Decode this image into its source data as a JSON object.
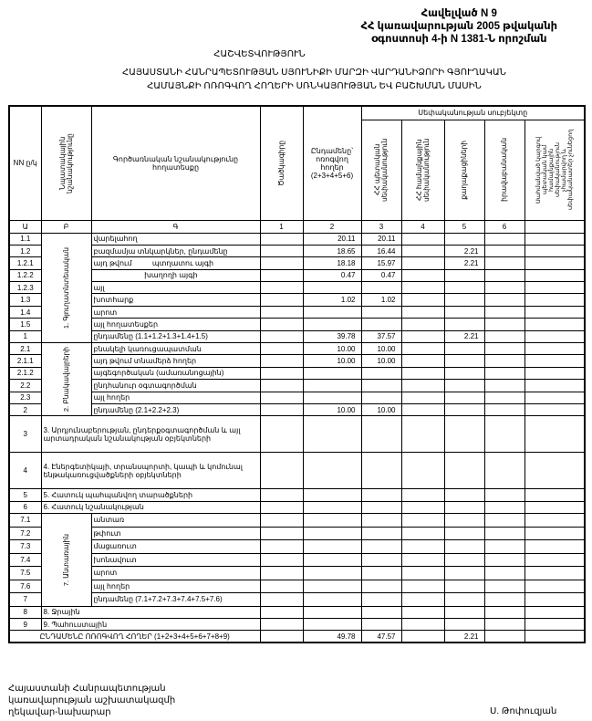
{
  "header": {
    "appendix": "Հավելված N 9",
    "line2": "ՀՀ կառավարության 2005 թվականի",
    "line3": "օգոստոսի 4-ի N 1381-Ն որոշման",
    "report": "ՀԱՇՎԵՏՎՈՒԹՅՈՒՆ",
    "title1": "ՀԱՅԱՍՏԱՆԻ ՀԱՆՐԱՊԵՏՈՒԹՅԱՆ ՍՅՈՒՆԻՔԻ ՄԱՐԶԻ ՎԱՐԴԱՆԻՁՈՐԻ ԳՅՈՒՂԱԿԱՆ",
    "title2": "ՀԱՄԱՅՆՔԻ ՈՌՈԳՎՈՂ ՀՈՂԵՐԻ ՍՌՆԿԱՅՈՒԹՅԱՆ ԵՎ ԲԱՇԽՄԱՆ ՄԱՍԻՆ"
  },
  "columns": {
    "nn": "NN ը/կ",
    "purpose": "Նպատակային նշանակությունը",
    "function": "Գործառնական նշանակությունը հողատեսքը",
    "code": "Ծածկագիրը",
    "total": "Ընդամենը՝ ոռոգվող հողեր (2+3+4+5+6)",
    "ownership": "Սեփականության սուբյեկտը",
    "state": "ՀՀ պետական սեփականություն",
    "community": "ՀՀ համայնքային սեփականություն",
    "citizens": "քաղաքացիների",
    "legal": "իրավաբանական",
    "other": "Սահմանված կարգով պետական կամ համայնքային սեփականություն չհամարվող և սեփականատեր չունեցող",
    "letters": [
      "Ա",
      "Բ",
      "Գ",
      "1",
      "2",
      "3",
      "4",
      "5",
      "6"
    ]
  },
  "groups": {
    "g1": "1. Գյուղատնտեսական",
    "g2": "2. Բնակավայրերի",
    "g7": "7. Անտառային"
  },
  "rows": [
    {
      "nn": "1.1",
      "label": "վարելահող",
      "group": "g1",
      "v": [
        "20.11",
        "20.11",
        "",
        "",
        "",
        ""
      ]
    },
    {
      "nn": "1.2",
      "label": "բազմամյա տնկարկներ, ընդամենը",
      "v": [
        "18.65",
        "16.44",
        "",
        "2.21",
        "",
        ""
      ]
    },
    {
      "nn": "1.2.1",
      "label": "այդ թվում          պտղատու այգի",
      "v": [
        "18.18",
        "15.97",
        "",
        "2.21",
        "",
        ""
      ]
    },
    {
      "nn": "1.2.2",
      "label": "                         խաղողի այգի",
      "v": [
        "0.47",
        "0.47",
        "",
        "",
        "",
        ""
      ]
    },
    {
      "nn": "1.2.3",
      "label": "այլ",
      "v": [
        "",
        "",
        "",
        "",
        "",
        ""
      ]
    },
    {
      "nn": "1.3",
      "label": "խոտհարք",
      "v": [
        "1.02",
        "1.02",
        "",
        "",
        "",
        ""
      ]
    },
    {
      "nn": "1.4",
      "label": "արոտ",
      "v": [
        "",
        "",
        "",
        "",
        "",
        ""
      ]
    },
    {
      "nn": "1.5",
      "label": "այլ հողատեսքեր",
      "v": [
        "",
        "",
        "",
        "",
        "",
        ""
      ]
    },
    {
      "nn": "1",
      "label": "ընդամենը (1.1+1.2+1.3+1.4+1.5)",
      "v": [
        "39.78",
        "37.57",
        "",
        "2.21",
        "",
        ""
      ]
    },
    {
      "nn": "2.1",
      "label": "բնակելի կառուցապատման",
      "group": "g2",
      "v": [
        "10.00",
        "10.00",
        "",
        "",
        "",
        ""
      ]
    },
    {
      "nn": "2.1.1",
      "label": "այդ թվում տնամերձ հողեր",
      "v": [
        "10.00",
        "10.00",
        "",
        "",
        "",
        ""
      ]
    },
    {
      "nn": "2.1.2",
      "label": "այգեգործական (ամառանոցային)",
      "v": [
        "",
        "",
        "",
        "",
        "",
        ""
      ]
    },
    {
      "nn": "2.2",
      "label": "ընդհանուր օգտագործման",
      "v": [
        "",
        "",
        "",
        "",
        "",
        ""
      ]
    },
    {
      "nn": "2.3",
      "label": "այլ հողեր",
      "v": [
        "",
        "",
        "",
        "",
        "",
        ""
      ]
    },
    {
      "nn": "2",
      "label": "ընդամենը (2.1+2.2+2.3)",
      "v": [
        "10.00",
        "10.00",
        "",
        "",
        "",
        ""
      ]
    },
    {
      "nn": "3",
      "label": "3. Արդյունաբերության, ընդերքօգտագործման և այլ արտադրական նշանակության օբյեկտների",
      "wide": true,
      "tall": true,
      "v": [
        "",
        "",
        "",
        "",
        "",
        ""
      ]
    },
    {
      "nn": "4",
      "label": "4. Էներգետիկայի, տրանսպորտի, կապի և կոմունալ ենթակառուցվածքների օբյեկտների",
      "wide": true,
      "tall": true,
      "v": [
        "",
        "",
        "",
        "",
        "",
        ""
      ]
    },
    {
      "nn": "5",
      "label": "5. Հատուկ պահպանվող տարածքների",
      "wide": true,
      "v": [
        "",
        "",
        "",
        "",
        "",
        ""
      ]
    },
    {
      "nn": "6",
      "label": "6. Հատուկ նշանակության",
      "wide": true,
      "v": [
        "",
        "",
        "",
        "",
        "",
        ""
      ]
    },
    {
      "nn": "7.1",
      "label": "անտառ",
      "group": "g7",
      "v": [
        "",
        "",
        "",
        "",
        "",
        ""
      ]
    },
    {
      "nn": "7.2",
      "label": "թփուտ",
      "v": [
        "",
        "",
        "",
        "",
        "",
        ""
      ]
    },
    {
      "nn": "7.3",
      "label": "մացառուտ",
      "v": [
        "",
        "",
        "",
        "",
        "",
        ""
      ]
    },
    {
      "nn": "7.4",
      "label": "խոնավուտ",
      "v": [
        "",
        "",
        "",
        "",
        "",
        ""
      ]
    },
    {
      "nn": "7.5",
      "label": "արոտ",
      "v": [
        "",
        "",
        "",
        "",
        "",
        ""
      ]
    },
    {
      "nn": "7.6",
      "label": "այլ հողեր",
      "v": [
        "",
        "",
        "",
        "",
        "",
        ""
      ]
    },
    {
      "nn": "7",
      "label": "ընդամենը (7.1+7.2+7.3+7.4+7.5+7.6)",
      "v": [
        "",
        "",
        "",
        "",
        "",
        ""
      ]
    },
    {
      "nn": "8",
      "label": "8. Ջրային",
      "wide": true,
      "v": [
        "",
        "",
        "",
        "",
        "",
        ""
      ]
    },
    {
      "nn": "9",
      "label": "9. Պահուստային",
      "wide": true,
      "v": [
        "",
        "",
        "",
        "",
        "",
        ""
      ]
    }
  ],
  "total": {
    "label": "ԸՆԴԱՄԵՆԸ ՈՌՈԳՎՈՂ ՀՈՂԵՐ (1+2+3+4+5+6+7+8+9)",
    "v": [
      "49.78",
      "47.57",
      "",
      "2.21",
      "",
      ""
    ]
  },
  "signature": {
    "line1": "Հայաստանի Հանրապետության",
    "line2": "կառավարության աշխատակազմի",
    "line3": "ղեկավար-նախարար",
    "name": "Ս. Թոփուզյան"
  }
}
